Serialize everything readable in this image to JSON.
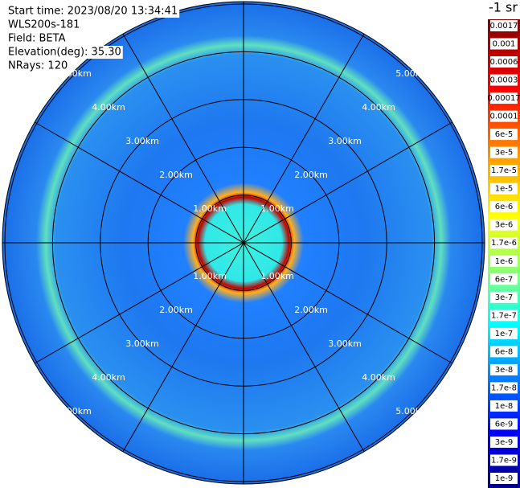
{
  "info": [
    "Start time: 2023/08/20 13:34:41",
    "WLS200s-181",
    "Field: BETA",
    "Elevation(deg): 35.30",
    "NRays: 120"
  ],
  "range_labels": [
    "1.00km",
    "2.00km",
    "3.00km",
    "4.00km",
    "5.00km"
  ],
  "colorbar": {
    "unit": "-1 sr",
    "labels": [
      "0.0017",
      "0.001",
      "0.0006",
      "0.0003",
      "0.00017",
      "0.0001",
      "6e-5",
      "3e-5",
      "1.7e-5",
      "1e-5",
      "6e-6",
      "3e-6",
      "1.7e-6",
      "1e-6",
      "6e-7",
      "3e-7",
      "1.7e-7",
      "1e-7",
      "6e-8",
      "3e-8",
      "1.7e-8",
      "1e-8",
      "6e-9",
      "3e-9",
      "1.7e-9",
      "1e-9"
    ]
  }
}
